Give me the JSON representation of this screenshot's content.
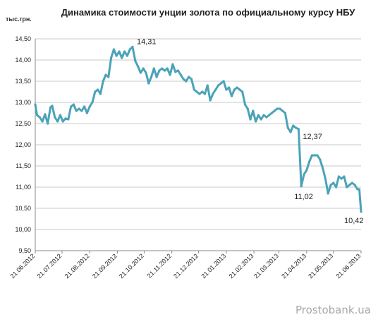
{
  "watermark": "Prostobank.ua",
  "chart_data": {
    "type": "line",
    "title": "Динамика стоимости унции золота по официальному курсу НБУ",
    "ylabel": "тыс.грн.",
    "xlabel": "",
    "ylim": [
      9.5,
      14.5
    ],
    "yticks": [
      "9,50",
      "10,00",
      "10,50",
      "11,00",
      "11,50",
      "12,00",
      "12,50",
      "13,00",
      "13,50",
      "14,00",
      "14,50"
    ],
    "xlim": [
      "2012-06-21",
      "2013-06-21"
    ],
    "xticks": [
      {
        "label": "21.06.2012",
        "date": "2012-06-21"
      },
      {
        "label": "21.07.2012",
        "date": "2012-07-21"
      },
      {
        "label": "21.08.2012",
        "date": "2012-08-21"
      },
      {
        "label": "21.09.2012",
        "date": "2012-09-21"
      },
      {
        "label": "21.10.2012",
        "date": "2012-10-21"
      },
      {
        "label": "21.11.2012",
        "date": "2012-11-21"
      },
      {
        "label": "21.12.2012",
        "date": "2012-12-21"
      },
      {
        "label": "21.01.2013",
        "date": "2013-01-21"
      },
      {
        "label": "21.02.2013",
        "date": "2013-02-21"
      },
      {
        "label": "21.03.2013",
        "date": "2013-03-21"
      },
      {
        "label": "21.04.2013",
        "date": "2013-04-21"
      },
      {
        "label": "21.05.2013",
        "date": "2013-05-21"
      },
      {
        "label": "21.06.2013",
        "date": "2013-06-21"
      }
    ],
    "grid": {
      "horizontal": true,
      "vertical": false
    },
    "line_color": "#4BA3B8",
    "series": [
      {
        "points": [
          [
            "2012-06-21",
            12.95
          ],
          [
            "2012-06-23",
            12.7
          ],
          [
            "2012-06-26",
            12.65
          ],
          [
            "2012-06-29",
            12.55
          ],
          [
            "2012-07-02",
            12.72
          ],
          [
            "2012-07-05",
            12.5
          ],
          [
            "2012-07-08",
            12.88
          ],
          [
            "2012-07-10",
            12.92
          ],
          [
            "2012-07-13",
            12.65
          ],
          [
            "2012-07-16",
            12.55
          ],
          [
            "2012-07-19",
            12.7
          ],
          [
            "2012-07-22",
            12.55
          ],
          [
            "2012-07-25",
            12.62
          ],
          [
            "2012-07-28",
            12.6
          ],
          [
            "2012-07-31",
            12.9
          ],
          [
            "2012-08-03",
            12.95
          ],
          [
            "2012-08-06",
            12.8
          ],
          [
            "2012-08-09",
            12.85
          ],
          [
            "2012-08-12",
            12.8
          ],
          [
            "2012-08-15",
            12.9
          ],
          [
            "2012-08-18",
            12.75
          ],
          [
            "2012-08-21",
            12.9
          ],
          [
            "2012-08-24",
            13.0
          ],
          [
            "2012-08-27",
            13.25
          ],
          [
            "2012-08-30",
            13.3
          ],
          [
            "2012-09-02",
            13.2
          ],
          [
            "2012-09-05",
            13.5
          ],
          [
            "2012-09-08",
            13.65
          ],
          [
            "2012-09-11",
            13.6
          ],
          [
            "2012-09-14",
            14.05
          ],
          [
            "2012-09-17",
            14.25
          ],
          [
            "2012-09-20",
            14.1
          ],
          [
            "2012-09-23",
            14.2
          ],
          [
            "2012-09-26",
            14.05
          ],
          [
            "2012-09-29",
            14.2
          ],
          [
            "2012-10-02",
            14.1
          ],
          [
            "2012-10-05",
            14.25
          ],
          [
            "2012-10-08",
            14.31
          ],
          [
            "2012-10-11",
            13.98
          ],
          [
            "2012-10-14",
            13.85
          ],
          [
            "2012-10-17",
            13.7
          ],
          [
            "2012-10-20",
            13.8
          ],
          [
            "2012-10-23",
            13.7
          ],
          [
            "2012-10-26",
            13.45
          ],
          [
            "2012-10-29",
            13.6
          ],
          [
            "2012-11-01",
            13.8
          ],
          [
            "2012-11-04",
            13.6
          ],
          [
            "2012-11-07",
            13.75
          ],
          [
            "2012-11-10",
            13.8
          ],
          [
            "2012-11-13",
            13.75
          ],
          [
            "2012-11-16",
            13.8
          ],
          [
            "2012-11-19",
            13.65
          ],
          [
            "2012-11-22",
            13.9
          ],
          [
            "2012-11-25",
            13.72
          ],
          [
            "2012-11-28",
            13.75
          ],
          [
            "2012-12-01",
            13.65
          ],
          [
            "2012-12-04",
            13.55
          ],
          [
            "2012-12-07",
            13.5
          ],
          [
            "2012-12-10",
            13.6
          ],
          [
            "2012-12-13",
            13.55
          ],
          [
            "2012-12-16",
            13.3
          ],
          [
            "2012-12-19",
            13.25
          ],
          [
            "2012-12-22",
            13.2
          ],
          [
            "2012-12-25",
            13.25
          ],
          [
            "2012-12-28",
            13.2
          ],
          [
            "2012-12-31",
            13.4
          ],
          [
            "2013-01-03",
            13.05
          ],
          [
            "2013-01-06",
            13.2
          ],
          [
            "2013-01-09",
            13.3
          ],
          [
            "2013-01-12",
            13.4
          ],
          [
            "2013-01-15",
            13.45
          ],
          [
            "2013-01-18",
            13.5
          ],
          [
            "2013-01-21",
            13.3
          ],
          [
            "2013-01-24",
            13.35
          ],
          [
            "2013-01-27",
            13.15
          ],
          [
            "2013-01-30",
            13.3
          ],
          [
            "2013-02-02",
            13.35
          ],
          [
            "2013-02-05",
            13.3
          ],
          [
            "2013-02-08",
            13.25
          ],
          [
            "2013-02-11",
            12.95
          ],
          [
            "2013-02-14",
            12.85
          ],
          [
            "2013-02-17",
            12.6
          ],
          [
            "2013-02-20",
            12.8
          ],
          [
            "2013-02-23",
            12.55
          ],
          [
            "2013-02-26",
            12.7
          ],
          [
            "2013-03-01",
            12.6
          ],
          [
            "2013-03-04",
            12.7
          ],
          [
            "2013-03-07",
            12.65
          ],
          [
            "2013-03-10",
            12.7
          ],
          [
            "2013-03-13",
            12.75
          ],
          [
            "2013-03-16",
            12.8
          ],
          [
            "2013-03-19",
            12.85
          ],
          [
            "2013-03-22",
            12.85
          ],
          [
            "2013-03-25",
            12.8
          ],
          [
            "2013-03-28",
            12.75
          ],
          [
            "2013-03-31",
            12.4
          ],
          [
            "2013-04-03",
            12.3
          ],
          [
            "2013-04-06",
            12.45
          ],
          [
            "2013-04-09",
            12.4
          ],
          [
            "2013-04-12",
            12.37
          ],
          [
            "2013-04-15",
            11.02
          ],
          [
            "2013-04-18",
            11.3
          ],
          [
            "2013-04-21",
            11.4
          ],
          [
            "2013-04-24",
            11.6
          ],
          [
            "2013-04-27",
            11.75
          ],
          [
            "2013-04-30",
            11.75
          ],
          [
            "2013-05-03",
            11.75
          ],
          [
            "2013-05-06",
            11.65
          ],
          [
            "2013-05-09",
            11.45
          ],
          [
            "2013-05-12",
            11.2
          ],
          [
            "2013-05-15",
            10.85
          ],
          [
            "2013-05-18",
            11.05
          ],
          [
            "2013-05-21",
            11.1
          ],
          [
            "2013-05-24",
            11.0
          ],
          [
            "2013-05-27",
            11.25
          ],
          [
            "2013-05-30",
            11.2
          ],
          [
            "2013-06-02",
            11.25
          ],
          [
            "2013-06-05",
            11.0
          ],
          [
            "2013-06-08",
            11.05
          ],
          [
            "2013-06-11",
            11.1
          ],
          [
            "2013-06-14",
            11.05
          ],
          [
            "2013-06-17",
            10.95
          ],
          [
            "2013-06-19",
            10.95
          ],
          [
            "2013-06-21",
            10.42
          ]
        ]
      }
    ],
    "annotations": [
      {
        "text": "14,31",
        "date": "2012-10-08",
        "value": 14.31
      },
      {
        "text": "12,37",
        "date": "2013-04-12",
        "value": 12.37
      },
      {
        "text": "11,02",
        "date": "2013-04-15",
        "value": 11.02
      },
      {
        "text": "10,42",
        "date": "2013-06-21",
        "value": 10.42
      }
    ]
  }
}
